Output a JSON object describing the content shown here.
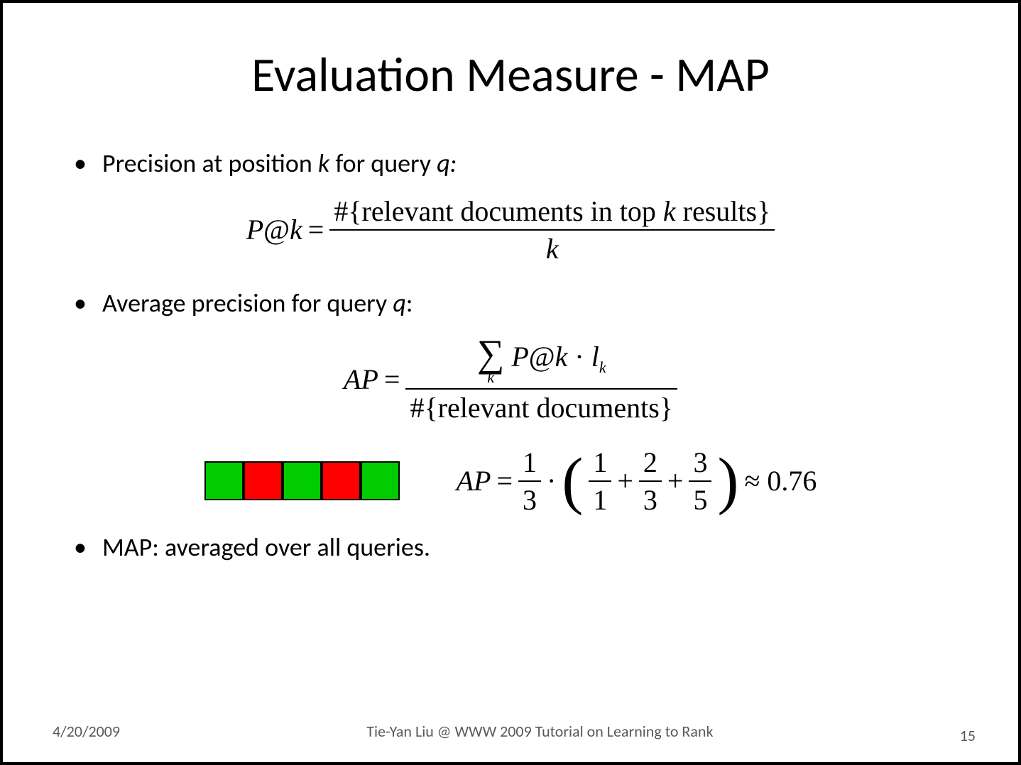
{
  "title": "Evaluation Measure - MAP",
  "bullets": {
    "b1_pre": "Precision at position ",
    "b1_k": "k",
    "b1_mid": " for query ",
    "b1_q": "q:",
    "b2_pre": "Average precision for query ",
    "b2_q": "q",
    "b2_post": ":",
    "b3": "MAP: averaged over all queries."
  },
  "formula1": {
    "lhs_P": "P",
    "lhs_at": "@",
    "lhs_k": "k",
    "eq": " = ",
    "num_pre": "#{relevant documents in top ",
    "num_k": "k",
    "num_post": " results}",
    "den": "k"
  },
  "formula2": {
    "lhs": "AP",
    "eq": " = ",
    "sum_sub": "k",
    "sum_body_P": "P",
    "sum_body_at": "@",
    "sum_body_k": "k",
    "sum_body_dot": " · ",
    "sum_body_l": "l",
    "sum_body_lk": "k",
    "den": "#{relevant documents}"
  },
  "boxes": {
    "colors": [
      "#00cc00",
      "#ff0000",
      "#00cc00",
      "#ff0000",
      "#00cc00"
    ],
    "border": "#000000"
  },
  "formula3": {
    "lhs": "AP",
    "eq": " = ",
    "f1n": "1",
    "f1d": "3",
    "dot": " · ",
    "f2n": "1",
    "f2d": "1",
    "plus": " + ",
    "f3n": "2",
    "f3d": "3",
    "f4n": "3",
    "f4d": "5",
    "approx": " ≈ 0.76"
  },
  "footer": {
    "date": "4/20/2009",
    "center": "Tie-Yan Liu @ WWW 2009 Tutorial on Learning to Rank",
    "page": "15"
  },
  "style": {
    "title_fontsize": 68,
    "body_fontsize": 36,
    "formula_fontsize": 40,
    "footer_fontsize": 22,
    "text_color": "#000000",
    "footer_color": "#595959",
    "background": "#ffffff",
    "border_color": "#000000"
  }
}
